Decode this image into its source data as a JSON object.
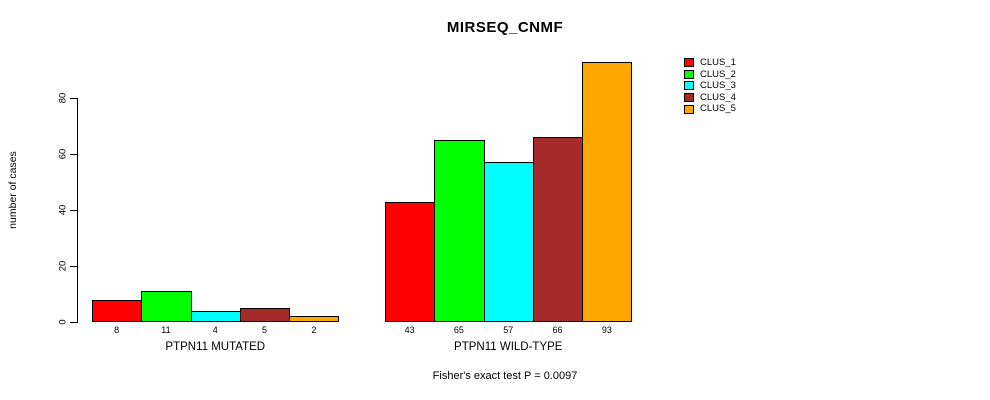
{
  "figure": {
    "title": "MIRSEQ_CNMF",
    "y_axis_label": "number of cases",
    "footnote": "Fisher's exact test P = 0.0097"
  },
  "chart_data": {
    "type": "bar",
    "title": "MIRSEQ_CNMF",
    "xlabel": "",
    "ylabel": "number of cases",
    "ylim": [
      0,
      95
    ],
    "yticks": [
      0,
      20,
      40,
      60,
      80
    ],
    "grid": false,
    "legend_position": "top-right",
    "bar_borders": "#000000",
    "categories": [
      "PTPN11 MUTATED",
      "PTPN11 WILD-TYPE"
    ],
    "series": [
      {
        "name": "CLUS_1",
        "color": "#FF0000",
        "values": [
          8,
          43
        ]
      },
      {
        "name": "CLUS_2",
        "color": "#00FF00",
        "values": [
          11,
          65
        ]
      },
      {
        "name": "CLUS_3",
        "color": "#00FFFF",
        "values": [
          4,
          57
        ]
      },
      {
        "name": "CLUS_4",
        "color": "#A52A2A",
        "values": [
          5,
          66
        ]
      },
      {
        "name": "CLUS_5",
        "color": "#FFA500",
        "values": [
          2,
          93
        ]
      }
    ],
    "bar_value_labels": [
      [
        8,
        11,
        4,
        5,
        2
      ],
      [
        43,
        65,
        57,
        66,
        93
      ]
    ],
    "annotation": "Fisher's exact test P = 0.0097"
  }
}
